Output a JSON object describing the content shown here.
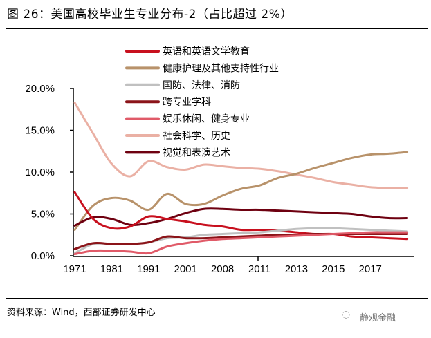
{
  "title": "图 26：美国高校毕业生专业分布-2（占比超过 2%）",
  "source": "资料来源：Wind，西部证券研发中心",
  "watermark": "静观金融",
  "chart_data": {
    "type": "line",
    "title": "",
    "xlabel": "",
    "ylabel": "",
    "ylim": [
      0,
      20
    ],
    "y_tick_labels": [
      "0.0%",
      "5.0%",
      "10.0%",
      "15.0%",
      "20.0%"
    ],
    "y_ticks": [
      0,
      5,
      10,
      15,
      20
    ],
    "categories": [
      "1971",
      "",
      "1981",
      "",
      "1991",
      "",
      "2001",
      "",
      "2008",
      "",
      "2011",
      "",
      "2013",
      "",
      "2015",
      "",
      "2017",
      "",
      ""
    ],
    "grid": false,
    "legend_position": "top-center",
    "series": [
      {
        "name": "英语和英语文学教育",
        "color": "#c8101e",
        "values": [
          7.6,
          4.4,
          3.3,
          3.5,
          4.7,
          4.4,
          4.1,
          3.7,
          3.5,
          3.1,
          3.1,
          3.0,
          2.8,
          2.6,
          2.6,
          2.3,
          2.2,
          2.1,
          2.0
        ]
      },
      {
        "name": "健康护理及其他支持性行业",
        "color": "#b8926a",
        "values": [
          3.1,
          6.0,
          6.9,
          6.6,
          5.5,
          7.4,
          6.2,
          6.2,
          7.2,
          8.0,
          8.4,
          9.3,
          9.8,
          10.5,
          11.1,
          11.7,
          12.1,
          12.2,
          12.4
        ]
      },
      {
        "name": "国防、法律、消防",
        "color": "#c0c0c0",
        "values": [
          0.3,
          1.4,
          1.4,
          1.4,
          1.6,
          2.1,
          2.2,
          2.5,
          2.6,
          2.7,
          2.8,
          3.0,
          3.2,
          3.3,
          3.3,
          3.2,
          3.1,
          3.0,
          2.9
        ]
      },
      {
        "name": "跨专业学科",
        "color": "#8b1419",
        "values": [
          0.8,
          1.5,
          1.4,
          1.4,
          1.6,
          2.3,
          2.1,
          2.1,
          2.2,
          2.3,
          2.4,
          2.5,
          2.5,
          2.6,
          2.6,
          2.6,
          2.6,
          2.6,
          2.6
        ]
      },
      {
        "name": "娱乐休闲、健身专业",
        "color": "#e05a68",
        "values": [
          0.2,
          0.6,
          0.6,
          0.5,
          0.3,
          1.1,
          1.5,
          1.8,
          2.0,
          2.1,
          2.2,
          2.3,
          2.4,
          2.5,
          2.6,
          2.7,
          2.8,
          2.8,
          2.8
        ]
      },
      {
        "name": "社会科学、历史",
        "color": "#eab0a4",
        "values": [
          18.3,
          14.6,
          11.0,
          9.5,
          11.3,
          10.6,
          10.3,
          10.9,
          10.7,
          10.5,
          10.4,
          10.1,
          9.7,
          9.3,
          8.8,
          8.5,
          8.2,
          8.1,
          8.1
        ]
      },
      {
        "name": "视觉和表演艺术",
        "color": "#6e0010",
        "values": [
          3.6,
          4.6,
          4.4,
          3.7,
          3.9,
          4.4,
          5.1,
          5.6,
          5.6,
          5.5,
          5.5,
          5.4,
          5.3,
          5.2,
          5.1,
          5.0,
          4.7,
          4.5,
          4.5
        ]
      }
    ]
  }
}
